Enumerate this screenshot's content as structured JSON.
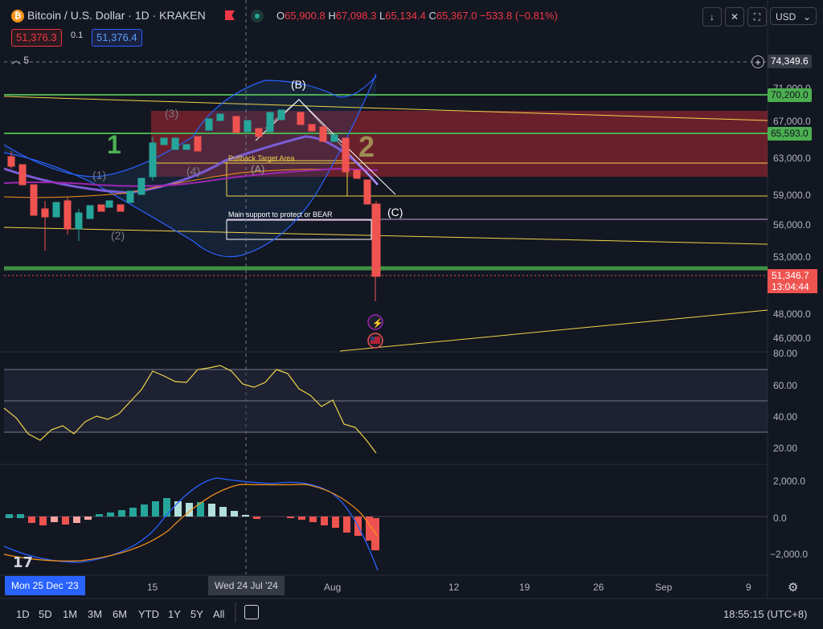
{
  "header": {
    "title": "Bitcoin / U.S. Dollar · 1D · KRAKEN",
    "ohlc": [
      {
        "k": "O",
        "v": "65,900.8"
      },
      {
        "k": "H",
        "v": "67,098.3"
      },
      {
        "k": "L",
        "v": "65,134.4"
      },
      {
        "k": "C",
        "v": "65,367.0"
      },
      {
        "k": "",
        "v": "−533.8 (−0.81%)"
      }
    ],
    "sell_price": "51,376.3",
    "spread": "0.1",
    "buy_price": "51,376.4",
    "indicators_count": "5",
    "currency": "USD"
  },
  "price_axis": {
    "top_tag": "74,349.6",
    "labels": [
      "71,000.0",
      "67,000.0",
      "63,000.0",
      "59,000.0",
      "56,000.0",
      "53,000.0",
      "48,000.0",
      "46,000.0"
    ],
    "tag_70200": "70,200.0",
    "tag_65593": "65,593.0",
    "current_price": "51,346.7",
    "countdown": "13:04:44",
    "rsi_labels": [
      "80.00",
      "60.00",
      "40.00",
      "20.00"
    ],
    "macd_labels": [
      "2,000.0",
      "0.0",
      "−2,000.0"
    ]
  },
  "annotations": {
    "wave_1": "1",
    "wave_2": "2",
    "wave_B": "(B)",
    "wave_C": "(C)",
    "wave_A": "(A)",
    "pullback_label": "Pullback Target Area",
    "support_label": "Main support to protect or BEAR",
    "sub_1": "(1)",
    "sub_2": "(2)",
    "sub_3": "(3)",
    "sub_4": "(4)"
  },
  "time_axis": {
    "highlight_left": "Mon 25 Dec '23",
    "highlight_mid": "Wed 24 Jul '24",
    "labels": [
      "15",
      "Aug",
      "12",
      "19",
      "26",
      "Sep",
      "9"
    ]
  },
  "bottom_bar": {
    "timeframes": [
      "1D",
      "5D",
      "1M",
      "3M",
      "6M",
      "YTD",
      "1Y",
      "5Y",
      "All"
    ],
    "clock": "18:55:15 (UTC+8)"
  },
  "colors": {
    "bg": "#131722",
    "up": "#26a69a",
    "down": "#ef5350",
    "resistance_zone": "#b22833",
    "green_line": "#4caf50",
    "yellow_line": "#f0d44a"
  }
}
